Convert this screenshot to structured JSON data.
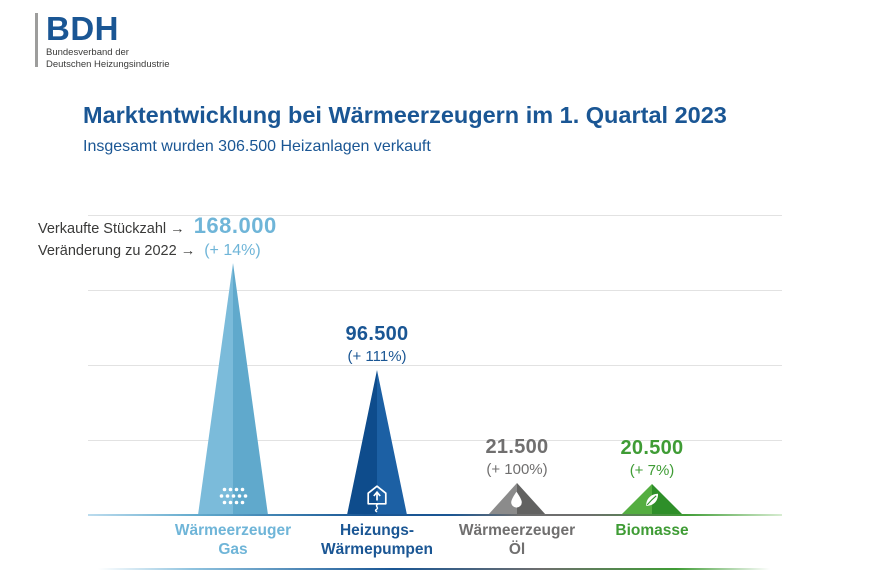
{
  "logo": {
    "acronym": "BDH",
    "subline1": "Bundesverband der",
    "subline2": "Deutschen Heizungsindustrie"
  },
  "header": {
    "title": "Marktentwicklung bei Wärmeerzeugern im 1. Quartal 2023",
    "subtitle": "Insgesamt wurden 306.500 Heizanlagen verkauft"
  },
  "annotation": {
    "row1_label": "Verkaufte Stückzahl →",
    "row1_value": "168.000",
    "row2_label": "Veränderung zu 2022 →",
    "row2_value": "(+ 14%)"
  },
  "palette": {
    "dark_blue": "#1a5694",
    "light_blue": "#6fb5d8",
    "gray": "#706f6f",
    "green": "#3f9c35",
    "gridline": "#e2e2e2"
  },
  "chart_data": {
    "type": "bar",
    "style": "triangle-cone-pictogram",
    "title": "Marktentwicklung bei Wärmeerzeugern im 1. Quartal 2023",
    "subtitle": "Insgesamt wurden 306.500 Heizanlagen verkauft",
    "total_units": 306500,
    "value_axis_label": "Verkaufte Stückzahl",
    "change_axis_label": "Veränderung zu 2022",
    "categories": [
      "Wärmeerzeuger Gas",
      "Heizungs-Wärmepumpen",
      "Wärmeerzeuger Öl",
      "Biomasse"
    ],
    "values": [
      168000,
      96500,
      21500,
      20500
    ],
    "value_labels": [
      "168.000",
      "96.500",
      "21.500",
      "20.500"
    ],
    "change_labels": [
      "(+ 14%)",
      "(+ 111%)",
      "(+ 100%)",
      "(+ 7%)"
    ],
    "changes_vs_2022_pct": [
      14,
      111,
      100,
      7
    ],
    "ylim": [
      0,
      200000
    ],
    "gridline_step": 50000,
    "grid": "on",
    "legend": "none",
    "series": [
      {
        "name": "Wärmeerzeuger Gas",
        "label_line1": "Wärmeerzeuger",
        "label_line2": "Gas",
        "value": 168000,
        "value_label": "168.000",
        "change_label": "(+ 14%)",
        "text_color": "#6fb5d8",
        "color_left": "#7bbbda",
        "color_right": "#60a9cc",
        "icon": "gas-burner-dots-icon"
      },
      {
        "name": "Heizungs-Wärmepumpen",
        "label_line1": "Heizungs-",
        "label_line2": "Wärmepumpen",
        "value": 96500,
        "value_label": "96.500",
        "change_label": "(+ 111%)",
        "text_color": "#1a5694",
        "color_left": "#0e4c8c",
        "color_right": "#1c60a4",
        "icon": "heat-pump-house-icon"
      },
      {
        "name": "Wärmeerzeuger Öl",
        "label_line1": "Wärmeerzeuger",
        "label_line2": "Öl",
        "value": 21500,
        "value_label": "21.500",
        "change_label": "(+ 100%)",
        "text_color": "#706f6f",
        "color_left": "#8b8b8b",
        "color_right": "#626261",
        "icon": "oil-droplet-icon"
      },
      {
        "name": "Biomasse",
        "label_line1": "Biomasse",
        "label_line2": "",
        "value": 20500,
        "value_label": "20.500",
        "change_label": "(+ 7%)",
        "text_color": "#3f9c35",
        "color_left": "#54ae40",
        "color_right": "#2e8f29",
        "icon": "leaf-icon"
      }
    ]
  }
}
